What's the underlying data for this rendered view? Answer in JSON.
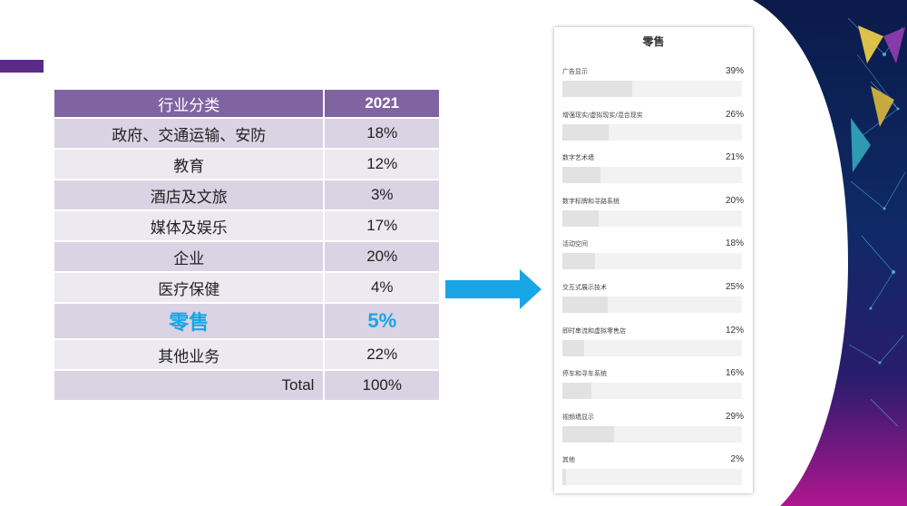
{
  "table": {
    "header": [
      "行业分类",
      "2021"
    ],
    "rows": [
      {
        "category": "政府、交通运输、安防",
        "value": "18%"
      },
      {
        "category": "教育",
        "value": "12%"
      },
      {
        "category": "酒店及文旅",
        "value": "3%"
      },
      {
        "category": "媒体及娱乐",
        "value": "17%"
      },
      {
        "category": "企业",
        "value": "20%"
      },
      {
        "category": "医疗保健",
        "value": "4%"
      },
      {
        "category": "零售",
        "value": "5%"
      },
      {
        "category": "其他业务",
        "value": "22%"
      }
    ],
    "total": {
      "label": "Total",
      "value": "100%"
    }
  },
  "card": {
    "title": "零售",
    "items": [
      {
        "label": "广告显示",
        "pct": "39%",
        "value": 39
      },
      {
        "label": "增强现实/虚拟现实/混合现实",
        "pct": "26%",
        "value": 26
      },
      {
        "label": "数字艺术墙",
        "pct": "21%",
        "value": 21
      },
      {
        "label": "数字标牌和寻路系统",
        "pct": "20%",
        "value": 20
      },
      {
        "label": "活动空间",
        "pct": "18%",
        "value": 18
      },
      {
        "label": "交互式展示技术",
        "pct": "25%",
        "value": 25
      },
      {
        "label": "即时串流和虚拟零售店",
        "pct": "12%",
        "value": 12
      },
      {
        "label": "停车和寻车系统",
        "pct": "16%",
        "value": 16
      },
      {
        "label": "视频墙显示",
        "pct": "29%",
        "value": 29
      },
      {
        "label": "其他",
        "pct": "2%",
        "value": 2
      }
    ]
  },
  "colors": {
    "accent_bar": "#5b2a86",
    "table_header": "#8064a2",
    "row_dark": "#d9d3e3",
    "row_light": "#ece9f1",
    "highlight_text": "#1aa5e6",
    "arrow": "#1aa5e6"
  },
  "icons": {
    "arrow": "right-arrow-icon"
  }
}
